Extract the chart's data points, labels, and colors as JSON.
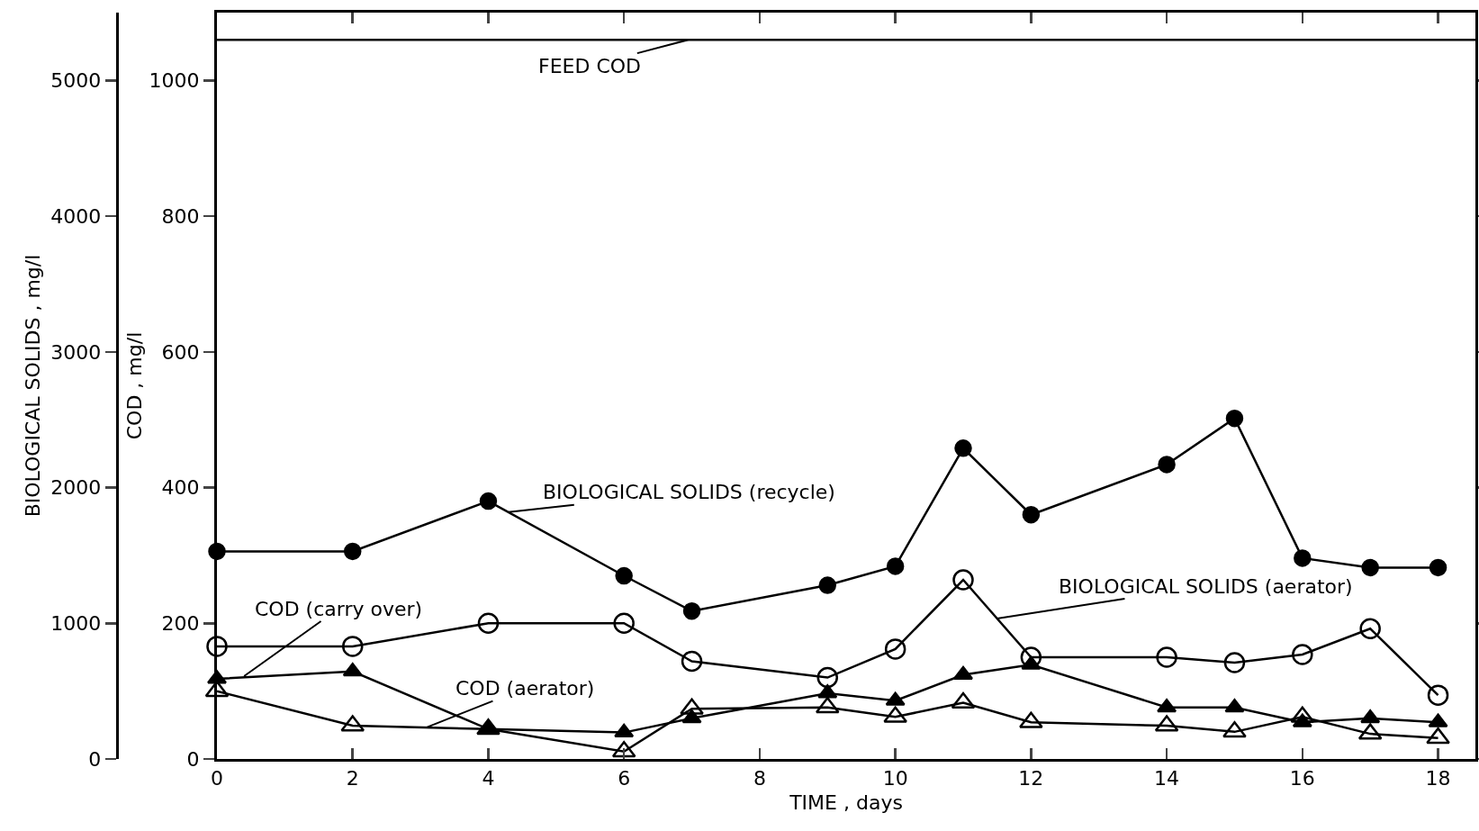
{
  "chart_data": {
    "type": "line",
    "xlabel": "TIME , days",
    "ylabel": "COD , mg/l",
    "y2label": "BIOLOGICAL SOLIDS , mg/l",
    "x": [
      0,
      2,
      4,
      6,
      7,
      9,
      10,
      11,
      12,
      14,
      15,
      16,
      17,
      18
    ],
    "xlim": [
      0,
      18.55
    ],
    "xticks": [
      0,
      2,
      4,
      6,
      8,
      10,
      12,
      14,
      16,
      18
    ],
    "ylim": [
      0,
      1100
    ],
    "yticks": [
      0,
      200,
      400,
      600,
      800,
      1000
    ],
    "y2lim": [
      0,
      5500
    ],
    "y2ticks": [
      0,
      1000,
      2000,
      3000,
      4000,
      5000
    ],
    "series": [
      {
        "color": "#000000",
        "axis": "y2",
        "marker": "circle",
        "values": [
          1530,
          1530,
          1900,
          1350,
          1090,
          1280,
          1420,
          2290,
          1800,
          2170,
          2510,
          1480,
          1410,
          1410
        ]
      },
      {
        "color": "#000000",
        "axis": "y2",
        "marker": "circle-open",
        "values": [
          830,
          830,
          1000,
          1000,
          720,
          600,
          810,
          1320,
          750,
          750,
          710,
          770,
          960,
          470
        ]
      },
      {
        "color": "#000000",
        "marker": "triangle",
        "values": [
          118,
          129,
          44,
          39,
          60,
          97,
          86,
          124,
          139,
          76,
          76,
          54,
          60,
          54
        ]
      },
      {
        "color": "#000000",
        "marker": "triangle-open",
        "values": [
          100,
          49,
          44,
          11,
          74,
          76,
          62,
          83,
          54,
          49,
          40,
          62,
          37,
          31
        ]
      }
    ],
    "ref_lines": [
      {
        "axis": "y",
        "value": 1060,
        "color": "#000000"
      }
    ],
    "annotations": [
      {
        "text": "FEED COD",
        "x": 6.95,
        "y": 1060
      },
      {
        "text": "BIOLOGICAL SOLIDS (recycle)",
        "x": 4.3,
        "y": 364
      },
      {
        "text": "BIOLOGICAL SOLIDS (aerator)",
        "x": 11.5,
        "y": 207
      },
      {
        "text": "COD (carry over)",
        "x": 0.4,
        "y": 122
      },
      {
        "text": "COD (aerator)",
        "x": 3.1,
        "y": 47
      }
    ],
    "grid": false,
    "line_style": "solid"
  }
}
